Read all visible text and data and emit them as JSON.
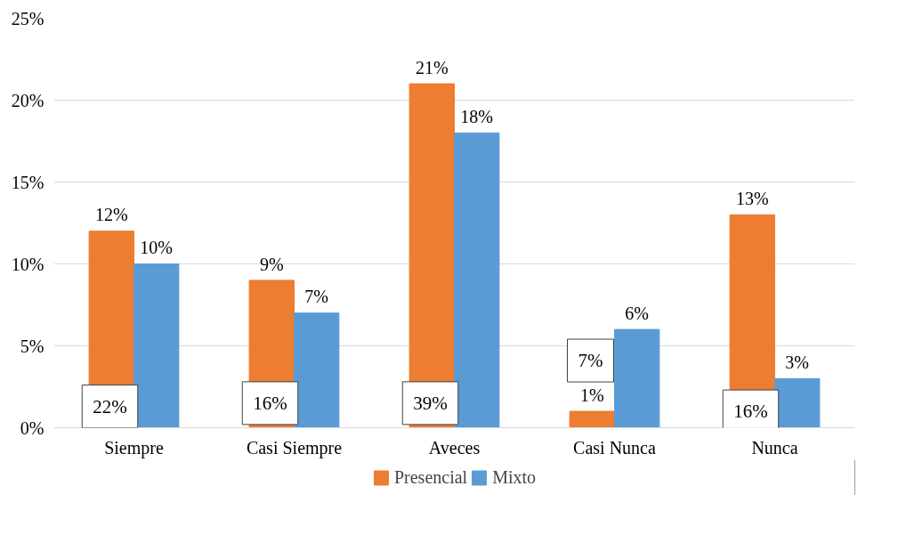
{
  "chart_data": {
    "type": "bar",
    "categories": [
      "Siempre",
      "Casi Siempre",
      "Aveces",
      "Casi Nunca",
      "Nunca"
    ],
    "series": [
      {
        "name": "Presencial",
        "color": "#ed7d31",
        "values": [
          12,
          9,
          21,
          1,
          13
        ],
        "value_labels": [
          "12%",
          "9%",
          "21%",
          "1%",
          "13%"
        ]
      },
      {
        "name": "Mixto",
        "color": "#5b9bd5",
        "values": [
          10,
          7,
          18,
          6,
          3
        ],
        "value_labels": [
          "10%",
          "7%",
          "18%",
          "6%",
          "3%"
        ]
      }
    ],
    "ylim": [
      0,
      25
    ],
    "yticks": [
      {
        "value": 0,
        "label": "0%"
      },
      {
        "value": 5,
        "label": "5%"
      },
      {
        "value": 10,
        "label": "10%"
      },
      {
        "value": 15,
        "label": "15%"
      },
      {
        "value": 20,
        "label": "20%"
      },
      {
        "value": 25,
        "label": "25%"
      }
    ],
    "grid": "y",
    "legend": "bottom",
    "annotations": [
      {
        "text": "22%",
        "x": "Siempre",
        "y": 1.3
      },
      {
        "text": "16%",
        "x": "Casi Siempre",
        "y": 1.5
      },
      {
        "text": "39%",
        "x": "Aveces",
        "y": 1.5
      },
      {
        "text": "7%",
        "x": "Casi Nunca",
        "y": 4.1
      },
      {
        "text": "16%",
        "x": "Nunca",
        "y": 1.0
      }
    ]
  }
}
